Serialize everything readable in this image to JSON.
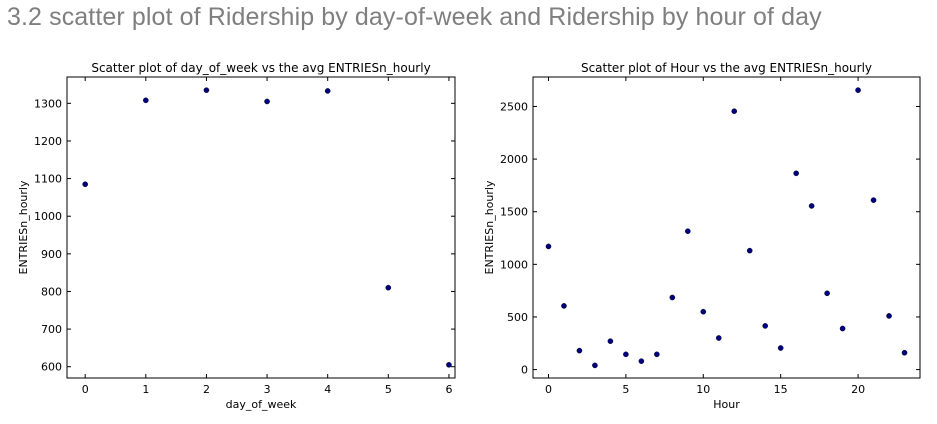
{
  "page": {
    "heading": "3.2 scatter plot of Ridership by day-of-week and Ridership by hour of day"
  },
  "colors": {
    "point": "#00007f",
    "axes": "#000000",
    "heading": "#7f7f7f"
  },
  "chart_data": [
    {
      "type": "scatter",
      "title": "Scatter plot of day_of_week vs the avg ENTRIESn_hourly",
      "xlabel": "day_of_week",
      "ylabel": "ENTRIESn_hourly",
      "xlim": [
        -0.3,
        6.1
      ],
      "ylim": [
        570,
        1370
      ],
      "xticks": [
        0,
        1,
        2,
        3,
        4,
        5,
        6
      ],
      "yticks": [
        600,
        700,
        800,
        900,
        1000,
        1100,
        1200,
        1300
      ],
      "grid": false,
      "x": [
        0,
        1,
        2,
        3,
        4,
        5,
        6
      ],
      "y": [
        1085,
        1308,
        1335,
        1305,
        1333,
        810,
        605
      ]
    },
    {
      "type": "scatter",
      "title": "Scatter plot of Hour vs the avg ENTRIESn_hourly",
      "xlabel": "Hour",
      "ylabel": "ENTRIESn_hourly",
      "xlim": [
        -1,
        24
      ],
      "ylim": [
        -80,
        2780
      ],
      "xticks": [
        0,
        5,
        10,
        15,
        20
      ],
      "yticks": [
        0,
        500,
        1000,
        1500,
        2000,
        2500
      ],
      "grid": false,
      "x": [
        0,
        1,
        2,
        3,
        4,
        5,
        6,
        7,
        8,
        9,
        10,
        11,
        12,
        13,
        14,
        15,
        16,
        17,
        18,
        19,
        20,
        21,
        22,
        23
      ],
      "y": [
        1170,
        605,
        180,
        40,
        270,
        145,
        80,
        145,
        685,
        1315,
        550,
        300,
        2455,
        1130,
        415,
        205,
        1865,
        1555,
        725,
        390,
        2655,
        1610,
        510,
        160
      ]
    }
  ]
}
